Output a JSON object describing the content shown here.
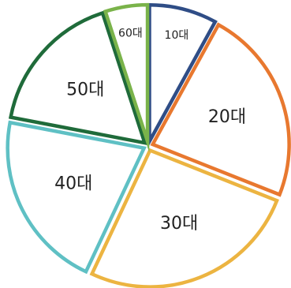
{
  "chart_data": {
    "type": "pie",
    "title": "",
    "slices": [
      {
        "label": "10대",
        "value": 8,
        "color": "#2f4d86"
      },
      {
        "label": "20대",
        "value": 23,
        "color": "#e8782f"
      },
      {
        "label": "30대",
        "value": 26,
        "color": "#ecb441"
      },
      {
        "label": "40대",
        "value": 21,
        "color": "#5fc0c4"
      },
      {
        "label": "50대",
        "value": 17,
        "color": "#1f6b3a"
      },
      {
        "label": "60대",
        "value": 5,
        "color": "#7ab34a"
      }
    ]
  }
}
